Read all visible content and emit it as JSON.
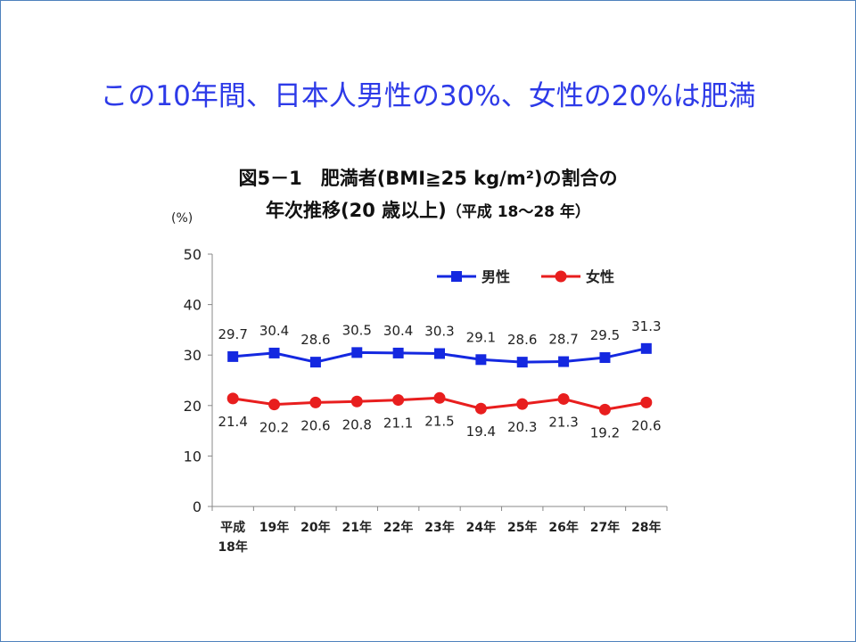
{
  "slide": {
    "title": "この10年間、日本人男性の30%、女性の20%は肥満"
  },
  "chart": {
    "title_line1": "図5－1　肥満者(BMI≧25 kg/m²)の割合の",
    "title_line2": "年次推移(20 歳以上)",
    "title_line2_sub": "（平成 18～28 年）",
    "unit": "(%)"
  },
  "colors": {
    "male": "#1428e0",
    "female": "#e81e1e",
    "title": "#2d3ae8",
    "frame": "#4f81bd"
  },
  "chart_data": {
    "type": "line",
    "categories": [
      "平成\n18年",
      "19年",
      "20年",
      "21年",
      "22年",
      "23年",
      "24年",
      "25年",
      "26年",
      "27年",
      "28年"
    ],
    "series": [
      {
        "name": "男性",
        "values": [
          29.7,
          30.4,
          28.6,
          30.5,
          30.4,
          30.3,
          29.1,
          28.6,
          28.7,
          29.5,
          31.3
        ]
      },
      {
        "name": "女性",
        "values": [
          21.4,
          20.2,
          20.6,
          20.8,
          21.1,
          21.5,
          19.4,
          20.3,
          21.3,
          19.2,
          20.6
        ]
      }
    ],
    "ylim": [
      0,
      50
    ],
    "yticks": [
      0,
      10,
      20,
      30,
      40,
      50
    ],
    "legend": "top-right",
    "grid": false
  }
}
